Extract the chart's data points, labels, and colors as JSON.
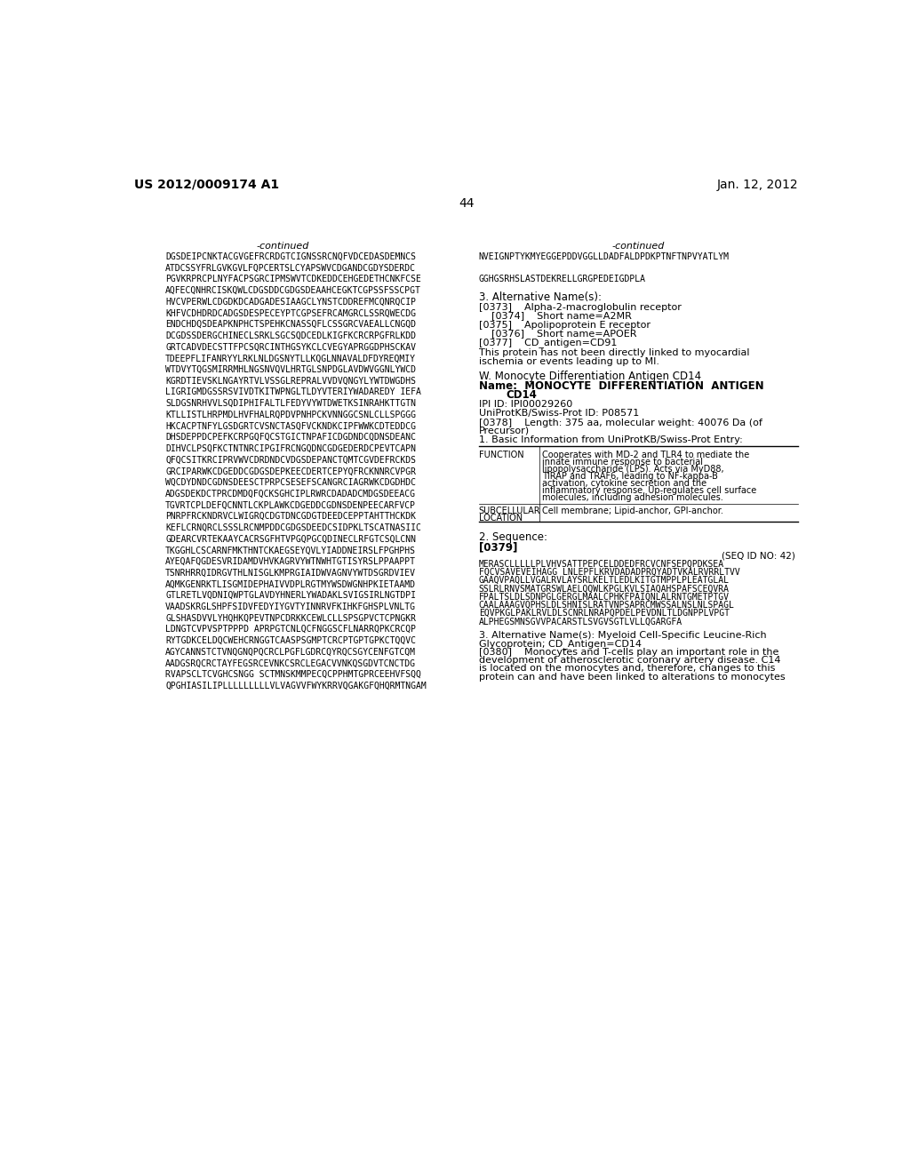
{
  "header_left": "US 2012/0009174 A1",
  "header_right": "Jan. 12, 2012",
  "page_number": "44",
  "left_col_continued": "-continued",
  "right_col_continued": "-continued",
  "left_sequence_lines": [
    "DGSDEIPCNKTACGVGEFRCRDGTCIGNSSRCNQFVDCEDASDEMNCS",
    "ATDCSSYFRLGVKGVLFQPCERTSLCYAPSWVCDGANDCGDYSDERDC",
    "PGVKRPRCPLNYFACPSGRCIPMSWVTCDKEDDCEHGEDETHCNKFCSE",
    "AQFECQNHRCISKQWLCDGSDDCGDGSDEAAHCEGKTCGPSSFSSCPGT",
    "HVCVPERWLCDGDKDCADGADESIAAGCLYNSTCDDREFMCQNRQCIP",
    "KHFVCDHDRDCADGSDESPECEYPTCGPSEFRCAMGRCLSSRQWECDG",
    "ENDCHDQSDEAPKNPHCTSPEHKCNASSQFLCSSGRCVAEALLCNGQD",
    "DCGDSSDERGCHINECLSRKLSGCSQDCEDLKIGFKCRCRPGFRLKDD",
    "GRTCADVDECSTTFPCSQRCINTHGSYKCLCVEGYAPRGGDPHSCKAV",
    "TDEEPFLIFANRYYLRKLNLDGSNYTLLKQGLNNAVALDFDYREQMIY",
    "WTDVYTQGSMIRRMHLNGSNVQVLHRTGLSNPDGLAVDWVGGNLYWCD",
    "KGRDTIEVSKLNGAYRTVLVSSGLREPRALVVDVQNGYLYWTDWGDHS",
    "LIGRIGMDGSSRSVIVDTKITWPNGLTLDYVTERIYWADAREDY IEFA",
    "SLDGSNRHVVLSQDIPHIFALTLFEDYVYWTDWETKSINRAHKTTGTN",
    "KTLLISTLHRPMDLHVFHALRQPDVPNHPCKVNNGGCSNLCLLSPGGG",
    "HKCACPTNFYLGSDGRTCVSNCTASQFVCKNDKCIPFWWKCDTEDDCG",
    "DHSDEPPDCPEFKCRPGQFQCSTGICTNPAFICDGDNDCQDNSDEANC",
    "DIHVCLPSQFKCTNTNRCIPGIFRCNGQDNCGDGEDERDCPEVTCAPN",
    "QFQCSITKRCIPRVWVCDRDNDCVDGSDEPANCTQMTCGVDEFRCKDS",
    "GRCIPARWKCDGEDDCGDGSDEPKEECDERTCEPYQFRCKNNRCVPGR",
    "WQCDYDNDCGDNSDEESCTPRPCSESEFSCANGRCIAGRWKCDGDHDC",
    "ADGSDEKDCTPRCDMDQFQCKSGHCIPLRWRCDADADCMDGSDEEACG",
    "TGVRTCPLDEFQCNNTLCKPLAWKCDGEDDCGDNSDENPEECARFVCP",
    "PNRPFRCKNDRVCLWIGRQCDGTDNCGDGTDEEDCEPPTAHTTHCKDK",
    "KEFLCRNQRCLSSSLRCNMPDDCGDGSDEEDCSIDPKLTSCATNASIIC",
    "GDEARCVRTEKAAYCACRSGFHTVPGQPGCQDINECLRFGTCSQLCNN",
    "TKGGHLCSCARNFMKTHNTCKAEGSEYQVLYIADDNEIRSLFPGHPHS",
    "AYEQAFQGDESVRIDAMDVHVKAGRVYWTNWHTGTISYRSLPPAAPPT",
    "TSNRHRRQIDRGVTHLNISGLKMPRGIAIDWVAGNVYWTDSGRDVIEV",
    "AQMKGENRKTLISGMIDEPHAIVVDPLRGTMYWSDWGNHPKIETAAMD",
    "GTLRETLVQDNIQWPTGLAVDYHNERLYWADAKLSVIGSIRLNGTDPI",
    "VAADSKRGLSHPFSIDVFEDYIYGVTYINNRVFKIHKFGHSPLVNLTG",
    "GLSHASDVVLYHQHKQPEVTNPCDRKKCEWLCLLSPSGPVCTCPNGKR",
    "LDNGTCVPVSPTPPPD APRPGTCNLQCFNGGSCFLNARRQPKCRCQP",
    "RYTGDKCELDQCWEHCRNGGTCAASPSGMPTCRCPTGPTGPKCTQQVC",
    "AGYCANNSTCTVNQGNQPQCRCLPGFLGDRCQYRQCSGYCENFGTCQM",
    "AADGSRQCRCTAYFEGSRCEVNKCSRCLEGACVVNKQSGDVTCNCTDG",
    "RVAPSCLTCVGHCSNGG SCTMNSKMMPECQCPPHMTGPRCEEHVFSQQ",
    "QPGHIASILIPLLLLLLLLLVLVAGVVFWYKRRVQGAKGFQHQRMTNGAM"
  ],
  "right_seq_lines_top": [
    "NVEIGNPTYKMYEGGEPDDVGGLLDADFALDPDKPTNFTNPVYATLYM",
    "",
    "GGHGSRHSLASTDEKRELLGRGPEDEIGDPLA"
  ],
  "section3_title": "3. Alternative Name(s):",
  "alt_names": [
    "[0373]    Alpha-2-macroglobulin receptor",
    "    [0374]    Short name=A2MR",
    "[0375]    Apolipoprotein E receptor",
    "    [0376]    Short name=APOER",
    "[0377]    CD_antigen=CD91"
  ],
  "not_linked_text": "This protein has not been directly linked to myocardial\nischemia or events leading up to MI.",
  "section_w_title": "W. Monocyte Differentiation Antigen CD14",
  "name_line1": "Name:  MONOCYTE  DIFFERENTIATION  ANTIGEN",
  "name_line2": "CD14",
  "ipi_id": "IPI ID: IPI00029260",
  "uniprot_id": "UniProtKB/Swiss-Prot ID: P08571",
  "param_0378_line1": "[0378]    Length: 375 aa, molecular weight: 40076 Da (of",
  "param_0378_line2": "Precursor)",
  "basic_info": "1. Basic Information from UniProtKB/Swiss-Prot Entry:",
  "func_label": "FUNCTION",
  "func_text_lines": [
    "Cooperates with MD-2 and TLR4 to mediate the",
    "innate immune response to bacterial",
    "lipopolysaccharide (LPS). Acts via MyD88,",
    "TIRAP and TRAF6, leading to NF-kappa-B",
    "activation, cytokine secretion and the",
    "inflammatory response. Up-regulates cell surface",
    "molecules, including adhesion molecules."
  ],
  "sub_label_line1": "SUBCELLULAR",
  "sub_label_line2": "LOCATION",
  "sub_text": "Cell membrane; Lipid-anchor, GPI-anchor.",
  "section2_title": "2. Sequence:",
  "param_0379": "[0379]",
  "seq_id_note": "(SEQ ID NO: 42)",
  "right_seq2_lines": [
    "MERASCLLLLLPLVHVSATTPEPCELDDEDFRCVCNFSEPQPDKSEA",
    "FQCVSAVEVEIHAGG LNLEPFLKRVDADADPRQYADTVKALRVRRLTVV",
    "GAAQVPAQLLVGALRVLAYSRLKELTLEDLKITGTMPPLPLEATGLAL",
    "SSLRLRNVSMATGRSWLAELQQWLKPGLKVLSIAQAHSPAFSCEQVRA",
    "FPALTSLDLSDNPGLGERGLMAALCPHKFPAIQNLALRNTGMETPTGV",
    "CAALAAAGVQPHSLDLSHNISLRATVNPSAPRCMWSSALNSLNLSPAGL",
    "EQVPKGLPAKLRVLDLSCNRLNRAPQPDELPEVDNLTLDGNPPLVPGT",
    "ALPHEGSMNSGVVPACARSTLSVGVSGTLVLLQGARGFA"
  ],
  "section3_alt_line1": "3. Alternative Name(s): Myeloid Cell-Specific Leucine-Rich",
  "section3_alt_line2": "Glycoprotein; CD_Antigen=CD14",
  "param_0380_lines": [
    "[0380]    Monocytes and T-cells play an important role in the",
    "development of atherosclerotic coronary artery disease. C14",
    "is located on the monocytes and, therefore, changes to this",
    "protein can and have been linked to alterations to monocytes"
  ]
}
